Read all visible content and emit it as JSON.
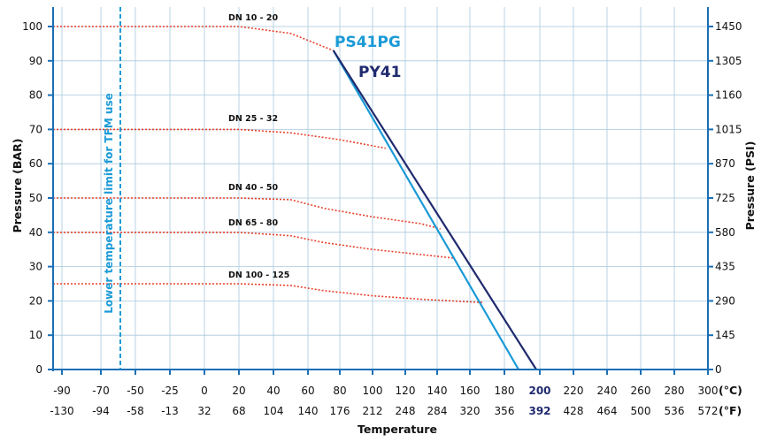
{
  "chart_data": {
    "type": "line",
    "xlabel": "Temperature",
    "ylabel_left": "Pressure (BAR)",
    "ylabel_right": "Pressure (PSI)",
    "x_unit_c": "(°C)",
    "x_unit_f": "(°F)",
    "xlim": [
      -100,
      300
    ],
    "ylim": [
      0,
      105
    ],
    "grid": true,
    "x_ticks_c": [
      "-90",
      "-70",
      "-50",
      "-25",
      "0",
      "20",
      "40",
      "60",
      "80",
      "100",
      "120",
      "140",
      "160",
      "180",
      "200",
      "220",
      "240",
      "260",
      "280",
      "300"
    ],
    "x_ticks_f": [
      "-130",
      "-94",
      "-58",
      "-13",
      "32",
      "68",
      "104",
      "140",
      "176",
      "212",
      "248",
      "284",
      "320",
      "356",
      "392",
      "428",
      "464",
      "500",
      "536",
      "572"
    ],
    "x_tick_values": [
      -90,
      -70,
      -50,
      -25,
      0,
      20,
      40,
      60,
      80,
      100,
      120,
      140,
      160,
      180,
      200,
      220,
      240,
      260,
      280,
      300
    ],
    "highlight_tick_index": 14,
    "y_ticks_bar": [
      "0",
      "10",
      "20",
      "30",
      "40",
      "50",
      "60",
      "70",
      "80",
      "90",
      "100"
    ],
    "y_tick_values": [
      0,
      10,
      20,
      30,
      40,
      50,
      60,
      70,
      80,
      90,
      100
    ],
    "y_ticks_psi": [
      "0",
      "145",
      "290",
      "435",
      "580",
      "725",
      "870",
      "1015",
      "1160",
      "1305",
      "1450"
    ],
    "vertical_limit": {
      "x": -60,
      "label": "Lower temperature limit for TFM use",
      "color": "#1a9ad6"
    },
    "colors": {
      "ps41pg": "#1a9ad6",
      "py41": "#1f2a6e",
      "dn": "#e8402a",
      "grid": "#a9c8de",
      "axis": "#1a6fb5"
    },
    "series": [
      {
        "name": "PS41PG",
        "x": [
          76,
          188
        ],
        "y": [
          93,
          0
        ],
        "color": "#1a9ad6"
      },
      {
        "name": "PY41",
        "x": [
          76,
          198
        ],
        "y": [
          93,
          0
        ],
        "color": "#1f2a6e"
      }
    ],
    "dn_series": [
      {
        "name": "DN 10 - 20",
        "x": [
          -100,
          20,
          50,
          76
        ],
        "y": [
          100,
          100,
          98,
          93
        ]
      },
      {
        "name": "DN 25 - 32",
        "x": [
          -100,
          20,
          50,
          80,
          108
        ],
        "y": [
          70,
          70,
          69,
          67,
          64.5
        ]
      },
      {
        "name": "DN 40 - 50",
        "x": [
          -100,
          20,
          50,
          70,
          100,
          130,
          142
        ],
        "y": [
          50,
          50,
          49.5,
          47,
          44.5,
          42.5,
          41
        ]
      },
      {
        "name": "DN 65 - 80",
        "x": [
          -100,
          20,
          50,
          70,
          100,
          130,
          150
        ],
        "y": [
          40,
          40,
          39,
          37,
          35,
          33.5,
          32.5
        ]
      },
      {
        "name": "DN 100 - 125",
        "x": [
          -100,
          20,
          50,
          70,
          100,
          130,
          168
        ],
        "y": [
          25,
          25,
          24.5,
          23,
          21.5,
          20.5,
          19.5
        ]
      }
    ]
  }
}
